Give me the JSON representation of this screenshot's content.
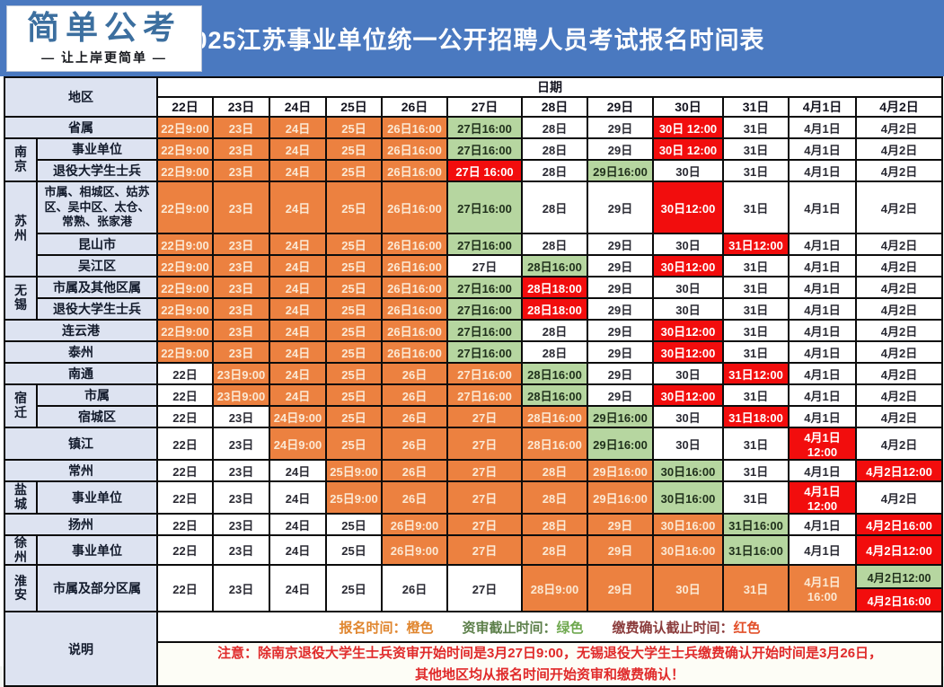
{
  "header": {
    "logo_title": "简单公考",
    "logo_subtitle": "— 让上岸更简单 —",
    "title": "2025江苏事业单位统一公开招聘人员考试报名时间表"
  },
  "colors": {
    "bar_blue": "#4a79c0",
    "logo_blue": "#3c6f9f",
    "region_bg": "#dde3f1",
    "registration_orange": "#ec8140",
    "review_green": "#b6d6a0",
    "payment_red": "#f20d0d",
    "warning_red": "#e02a2a"
  },
  "table": {
    "region_header": "地区",
    "date_header": "日期",
    "date_columns": [
      "22日",
      "23日",
      "24日",
      "25日",
      "26日",
      "27日",
      "28日",
      "29日",
      "30日",
      "31日",
      "4月1日",
      "4月2日"
    ],
    "rows": [
      {
        "full": true,
        "region": "省属",
        "cells": [
          {
            "t": "22日9:00",
            "c": "o"
          },
          {
            "t": "23日",
            "c": "o"
          },
          {
            "t": "24日",
            "c": "o"
          },
          {
            "t": "25日",
            "c": "o"
          },
          {
            "t": "26日16:00",
            "c": "o"
          },
          {
            "t": "27日16:00",
            "c": "g"
          },
          {
            "t": "28日",
            "c": "w"
          },
          {
            "t": "29日",
            "c": "w"
          },
          {
            "t": "30日 12:00",
            "c": "r"
          },
          {
            "t": "31日",
            "c": "w"
          },
          {
            "t": "4月1日",
            "c": "w"
          },
          {
            "t": "4月2日",
            "c": "w"
          }
        ]
      },
      {
        "group": "南京",
        "group_span": 2,
        "region": "事业单位",
        "cells": [
          {
            "t": "22日9:00",
            "c": "o"
          },
          {
            "t": "23日",
            "c": "o"
          },
          {
            "t": "24日",
            "c": "o"
          },
          {
            "t": "25日",
            "c": "o"
          },
          {
            "t": "26日16:00",
            "c": "o"
          },
          {
            "t": "27日16:00",
            "c": "g"
          },
          {
            "t": "28日",
            "c": "w"
          },
          {
            "t": "29日",
            "c": "w"
          },
          {
            "t": "30日 12:00",
            "c": "r"
          },
          {
            "t": "31日",
            "c": "w"
          },
          {
            "t": "4月1日",
            "c": "w"
          },
          {
            "t": "4月2日",
            "c": "w"
          }
        ]
      },
      {
        "region": "退役大学生士兵",
        "cells": [
          {
            "t": "22日9:00",
            "c": "o"
          },
          {
            "t": "23日",
            "c": "o"
          },
          {
            "t": "24日",
            "c": "o"
          },
          {
            "t": "25日",
            "c": "o"
          },
          {
            "t": "26日16:00",
            "c": "o"
          },
          {
            "t": "27日 16:00",
            "c": "r"
          },
          {
            "t": "28日",
            "c": "w"
          },
          {
            "t": "29日16:00",
            "c": "g"
          },
          {
            "t": "30日",
            "c": "w"
          },
          {
            "t": "31日",
            "c": "w"
          },
          {
            "t": "4月1日",
            "c": "w"
          },
          {
            "t": "4月2日",
            "c": "w"
          }
        ]
      },
      {
        "group": "苏州",
        "group_span": 3,
        "region": "市属、相城区、姑苏区、吴中区、太仓、常熟、张家港",
        "cells": [
          {
            "t": "22日9:00",
            "c": "o"
          },
          {
            "t": "23日",
            "c": "o"
          },
          {
            "t": "24日",
            "c": "o"
          },
          {
            "t": "25日",
            "c": "o"
          },
          {
            "t": "26日16:00",
            "c": "o"
          },
          {
            "t": "27日16:00",
            "c": "g"
          },
          {
            "t": "28日",
            "c": "w"
          },
          {
            "t": "29日",
            "c": "w"
          },
          {
            "t": "30日12:00",
            "c": "r"
          },
          {
            "t": "31日",
            "c": "w"
          },
          {
            "t": "4月1日",
            "c": "w"
          },
          {
            "t": "4月2日",
            "c": "w"
          }
        ]
      },
      {
        "region": "昆山市",
        "cells": [
          {
            "t": "22日9:00",
            "c": "o"
          },
          {
            "t": "23日",
            "c": "o"
          },
          {
            "t": "24日",
            "c": "o"
          },
          {
            "t": "25日",
            "c": "o"
          },
          {
            "t": "26日16:00",
            "c": "o"
          },
          {
            "t": "27日16:00",
            "c": "g"
          },
          {
            "t": "28日",
            "c": "w"
          },
          {
            "t": "29日",
            "c": "w"
          },
          {
            "t": "30日",
            "c": "w"
          },
          {
            "t": "31日12:00",
            "c": "r"
          },
          {
            "t": "4月1日",
            "c": "w"
          },
          {
            "t": "4月2日",
            "c": "w"
          }
        ]
      },
      {
        "region": "吴江区",
        "cells": [
          {
            "t": "22日9:00",
            "c": "o"
          },
          {
            "t": "23日",
            "c": "o"
          },
          {
            "t": "24日",
            "c": "o"
          },
          {
            "t": "25日",
            "c": "o"
          },
          {
            "t": "26日16:00",
            "c": "o"
          },
          {
            "t": "27日",
            "c": "w"
          },
          {
            "t": "28日16:00",
            "c": "g"
          },
          {
            "t": "29日",
            "c": "w"
          },
          {
            "t": "30日12:00",
            "c": "r"
          },
          {
            "t": "31日",
            "c": "w"
          },
          {
            "t": "4月1日",
            "c": "w"
          },
          {
            "t": "4月2日",
            "c": "w"
          }
        ]
      },
      {
        "group": "无锡",
        "group_span": 2,
        "region": "市属及其他区属",
        "cells": [
          {
            "t": "22日9:00",
            "c": "o"
          },
          {
            "t": "23日",
            "c": "o"
          },
          {
            "t": "24日",
            "c": "o"
          },
          {
            "t": "25日",
            "c": "o"
          },
          {
            "t": "26日16:00",
            "c": "o"
          },
          {
            "t": "27日16:00",
            "c": "g"
          },
          {
            "t": "28日18:00",
            "c": "r"
          },
          {
            "t": "29日",
            "c": "w"
          },
          {
            "t": "30日",
            "c": "w"
          },
          {
            "t": "31日",
            "c": "w"
          },
          {
            "t": "4月1日",
            "c": "w"
          },
          {
            "t": "4月2日",
            "c": "w"
          }
        ]
      },
      {
        "region": "退役大学生士兵",
        "cells": [
          {
            "t": "22日9:00",
            "c": "o"
          },
          {
            "t": "23日",
            "c": "o"
          },
          {
            "t": "24日",
            "c": "o"
          },
          {
            "t": "25日",
            "c": "o"
          },
          {
            "t": "26日16:00",
            "c": "o"
          },
          {
            "t": "27日16:00",
            "c": "g"
          },
          {
            "t": "28日18:00",
            "c": "r"
          },
          {
            "t": "29日",
            "c": "w"
          },
          {
            "t": "30日",
            "c": "w"
          },
          {
            "t": "31日",
            "c": "w"
          },
          {
            "t": "4月1日",
            "c": "w"
          },
          {
            "t": "4月2日",
            "c": "w"
          }
        ]
      },
      {
        "full": true,
        "region": "连云港",
        "cells": [
          {
            "t": "22日9:00",
            "c": "o"
          },
          {
            "t": "23日",
            "c": "o"
          },
          {
            "t": "24日",
            "c": "o"
          },
          {
            "t": "25日",
            "c": "o"
          },
          {
            "t": "26日16:00",
            "c": "o"
          },
          {
            "t": "27日16:00",
            "c": "g"
          },
          {
            "t": "28日",
            "c": "w"
          },
          {
            "t": "29日",
            "c": "w"
          },
          {
            "t": "30日12:00",
            "c": "r"
          },
          {
            "t": "31日",
            "c": "w"
          },
          {
            "t": "4月1日",
            "c": "w"
          },
          {
            "t": "4月2日",
            "c": "w"
          }
        ]
      },
      {
        "full": true,
        "region": "泰州",
        "cells": [
          {
            "t": "22日9:00",
            "c": "o"
          },
          {
            "t": "23日",
            "c": "o"
          },
          {
            "t": "24日",
            "c": "o"
          },
          {
            "t": "25日",
            "c": "o"
          },
          {
            "t": "26日16:00",
            "c": "o"
          },
          {
            "t": "27日16:00",
            "c": "g"
          },
          {
            "t": "28日",
            "c": "w"
          },
          {
            "t": "29日",
            "c": "w"
          },
          {
            "t": "30日12:00",
            "c": "r"
          },
          {
            "t": "31日",
            "c": "w"
          },
          {
            "t": "4月1日",
            "c": "w"
          },
          {
            "t": "4月2日",
            "c": "w"
          }
        ]
      },
      {
        "full": true,
        "region": "南通",
        "cells": [
          {
            "t": "22日",
            "c": "w"
          },
          {
            "t": "23日9:00",
            "c": "o"
          },
          {
            "t": "24日",
            "c": "o"
          },
          {
            "t": "25日",
            "c": "o"
          },
          {
            "t": "26日",
            "c": "o"
          },
          {
            "t": "27日16:00",
            "c": "o"
          },
          {
            "t": "28日16:00",
            "c": "g"
          },
          {
            "t": "29日",
            "c": "w"
          },
          {
            "t": "30日",
            "c": "w"
          },
          {
            "t": "31日12:00",
            "c": "r"
          },
          {
            "t": "4月1日",
            "c": "w"
          },
          {
            "t": "4月2日",
            "c": "w"
          }
        ]
      },
      {
        "group": "宿迁",
        "group_span": 2,
        "region": "市属",
        "cells": [
          {
            "t": "22日",
            "c": "w"
          },
          {
            "t": "23日9:00",
            "c": "o"
          },
          {
            "t": "24日",
            "c": "o"
          },
          {
            "t": "25日",
            "c": "o"
          },
          {
            "t": "26日",
            "c": "o"
          },
          {
            "t": "27日16:00",
            "c": "o"
          },
          {
            "t": "28日16:00",
            "c": "g"
          },
          {
            "t": "29日",
            "c": "w"
          },
          {
            "t": "30日12:00",
            "c": "r"
          },
          {
            "t": "31日",
            "c": "w"
          },
          {
            "t": "4月1日",
            "c": "w"
          },
          {
            "t": "4月2日",
            "c": "w"
          }
        ]
      },
      {
        "region": "宿城区",
        "cells": [
          {
            "t": "22日",
            "c": "w"
          },
          {
            "t": "23日",
            "c": "w"
          },
          {
            "t": "24日9:00",
            "c": "o"
          },
          {
            "t": "25日",
            "c": "o"
          },
          {
            "t": "26日",
            "c": "o"
          },
          {
            "t": "27日",
            "c": "o"
          },
          {
            "t": "28日16:00",
            "c": "o"
          },
          {
            "t": "29日16:00",
            "c": "g"
          },
          {
            "t": "30日",
            "c": "w"
          },
          {
            "t": "31日18:00",
            "c": "r"
          },
          {
            "t": "4月1日",
            "c": "w"
          },
          {
            "t": "4月2日",
            "c": "w"
          }
        ]
      },
      {
        "full": true,
        "region": "镇江",
        "cells": [
          {
            "t": "22日",
            "c": "w"
          },
          {
            "t": "23日",
            "c": "w"
          },
          {
            "t": "24日9:00",
            "c": "o"
          },
          {
            "t": "25日",
            "c": "o"
          },
          {
            "t": "26日",
            "c": "o"
          },
          {
            "t": "27日",
            "c": "o"
          },
          {
            "t": "28日16:00",
            "c": "o"
          },
          {
            "t": "29日16:00",
            "c": "g"
          },
          {
            "t": "30日",
            "c": "w"
          },
          {
            "t": "31日",
            "c": "w"
          },
          {
            "t": "4月1日12:00",
            "c": "r"
          },
          {
            "t": "4月2日",
            "c": "w"
          }
        ]
      },
      {
        "full": true,
        "region": "常州",
        "cells": [
          {
            "t": "22日",
            "c": "w"
          },
          {
            "t": "23日",
            "c": "w"
          },
          {
            "t": "24日",
            "c": "w"
          },
          {
            "t": "25日9:00",
            "c": "o"
          },
          {
            "t": "26日",
            "c": "o"
          },
          {
            "t": "27日",
            "c": "o"
          },
          {
            "t": "28日",
            "c": "o"
          },
          {
            "t": "29日16:00",
            "c": "o"
          },
          {
            "t": "30日16:00",
            "c": "g"
          },
          {
            "t": "31日",
            "c": "w"
          },
          {
            "t": "4月1日",
            "c": "w"
          },
          {
            "t": "4月2日12:00",
            "c": "r"
          }
        ]
      },
      {
        "group": "盐城",
        "group_span": 1,
        "region": "事业单位",
        "cells": [
          {
            "t": "22日",
            "c": "w"
          },
          {
            "t": "23日",
            "c": "w"
          },
          {
            "t": "24日",
            "c": "w"
          },
          {
            "t": "25日9:00",
            "c": "o"
          },
          {
            "t": "26日",
            "c": "o"
          },
          {
            "t": "27日",
            "c": "o"
          },
          {
            "t": "28日",
            "c": "o"
          },
          {
            "t": "29日16:00",
            "c": "o"
          },
          {
            "t": "30日16:00",
            "c": "g"
          },
          {
            "t": "31日",
            "c": "w"
          },
          {
            "t": "4月1日12:00",
            "c": "r"
          },
          {
            "t": "4月2日",
            "c": "w"
          }
        ]
      },
      {
        "full": true,
        "region": "扬州",
        "cells": [
          {
            "t": "22日",
            "c": "w"
          },
          {
            "t": "23日",
            "c": "w"
          },
          {
            "t": "24日",
            "c": "w"
          },
          {
            "t": "25日",
            "c": "w"
          },
          {
            "t": "26日9:00",
            "c": "o"
          },
          {
            "t": "27日",
            "c": "o"
          },
          {
            "t": "28日",
            "c": "o"
          },
          {
            "t": "29日",
            "c": "o"
          },
          {
            "t": "30日16:00",
            "c": "o"
          },
          {
            "t": "31日16:00",
            "c": "g"
          },
          {
            "t": "4月1日",
            "c": "w"
          },
          {
            "t": "4月2日16:00",
            "c": "r"
          }
        ]
      },
      {
        "group": "徐州",
        "group_span": 1,
        "region": "事业单位",
        "cells": [
          {
            "t": "22日",
            "c": "w"
          },
          {
            "t": "23日",
            "c": "w"
          },
          {
            "t": "24日",
            "c": "w"
          },
          {
            "t": "25日",
            "c": "w"
          },
          {
            "t": "26日9:00",
            "c": "o"
          },
          {
            "t": "27日",
            "c": "o"
          },
          {
            "t": "28日",
            "c": "o"
          },
          {
            "t": "29日",
            "c": "o"
          },
          {
            "t": "30日16:00",
            "c": "o"
          },
          {
            "t": "31日16:00",
            "c": "g"
          },
          {
            "t": "4月1日",
            "c": "w"
          },
          {
            "t": "4月2日12:00",
            "c": "r"
          }
        ]
      },
      {
        "group": "淮安",
        "group_span": 1,
        "region": "市属及部分区属",
        "cells": [
          {
            "t": "22日",
            "c": "w"
          },
          {
            "t": "23日",
            "c": "w"
          },
          {
            "t": "24日",
            "c": "w"
          },
          {
            "t": "25日",
            "c": "w"
          },
          {
            "t": "26日",
            "c": "w"
          },
          {
            "t": "27日",
            "c": "w"
          },
          {
            "t": "28日9:00",
            "c": "o"
          },
          {
            "t": "29日",
            "c": "o"
          },
          {
            "t": "30日",
            "c": "o"
          },
          {
            "t": "31日",
            "c": "o"
          },
          {
            "t": "4月1日16:00",
            "c": "o"
          },
          {
            "split": [
              {
                "t": "4月2日12:00",
                "c": "g"
              },
              {
                "t": "4月2日16:00",
                "c": "r"
              }
            ]
          }
        ]
      }
    ]
  },
  "notes": {
    "label": "说明",
    "legend": [
      {
        "label": "报名时间：",
        "value": "橙色",
        "label_color": "#e0862f",
        "value_color": "#e0862f"
      },
      {
        "label": "资审截止时间：",
        "value": "绿色",
        "label_color": "#5c7f4a",
        "value_color": "#6fa84f"
      },
      {
        "label": "缴费确认截止时间：",
        "value": "红色",
        "label_color": "#8b3c3c",
        "value_color": "#e2502a"
      }
    ],
    "warning_line1": "注意：除南京退役大学生士兵资审开始时间是3月27日9:00，无锡退役大学生士兵缴费确认开始时间是3月26日，",
    "warning_line2": "其他地区均从报名时间开始资审和缴费确认！"
  }
}
